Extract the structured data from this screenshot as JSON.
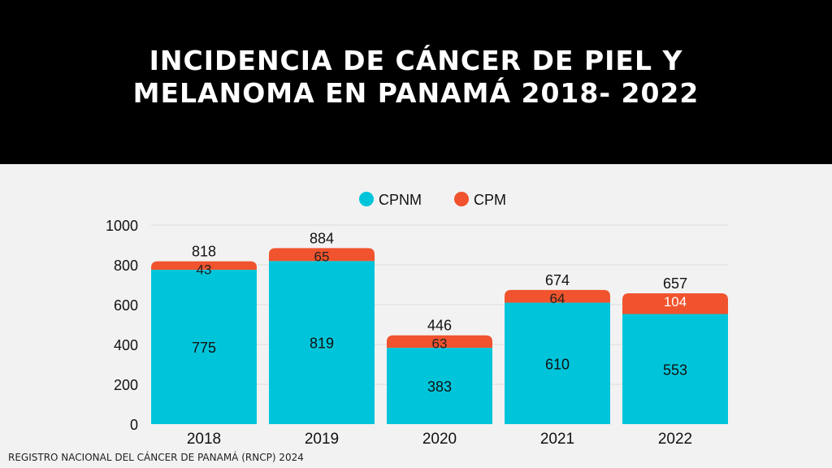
{
  "title_lines": [
    "INCIDENCIA DE CÁNCER DE PIEL Y",
    "MELANOMA EN PANAMÁ 2018- 2022"
  ],
  "source": "REGISTRO NACIONAL DEL CÁNCER DE PANAMÁ (RNCP) 2024",
  "chart_data": {
    "type": "bar",
    "stacked": true,
    "categories": [
      "2018",
      "2019",
      "2020",
      "2021",
      "2022"
    ],
    "series": [
      {
        "name": "CPNM",
        "color": "#00C5DA",
        "values": [
          775,
          819,
          383,
          610,
          553
        ]
      },
      {
        "name": "CPM",
        "color": "#F0532D",
        "values": [
          43,
          65,
          63,
          64,
          104
        ]
      }
    ],
    "totals": [
      818,
      884,
      446,
      674,
      657
    ],
    "ylim": [
      0,
      1000
    ],
    "yticks": [
      0,
      200,
      400,
      600,
      800,
      1000
    ],
    "grid": true,
    "legend": "top-center"
  }
}
